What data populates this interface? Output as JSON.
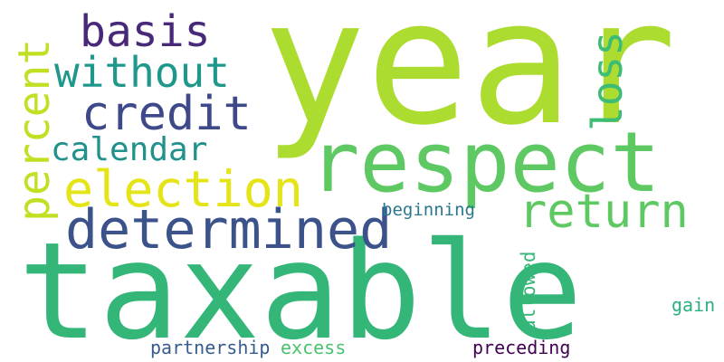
{
  "word_cloud": {
    "words": [
      {
        "id": "year",
        "text": "year",
        "color": "#addc30"
      },
      {
        "id": "taxable",
        "text": "taxable",
        "color": "#34b679"
      },
      {
        "id": "respect",
        "text": "respect",
        "color": "#5ec962"
      },
      {
        "id": "determined",
        "text": "determined",
        "color": "#3b528b"
      },
      {
        "id": "election",
        "text": "election",
        "color": "#e5e419"
      },
      {
        "id": "credit",
        "text": "credit",
        "color": "#3e4989"
      },
      {
        "id": "return",
        "text": "return",
        "color": "#5ec962"
      },
      {
        "id": "basis",
        "text": "basis",
        "color": "#482878"
      },
      {
        "id": "without",
        "text": "without",
        "color": "#1f988b"
      },
      {
        "id": "calendar",
        "text": "calendar",
        "color": "#21918c"
      },
      {
        "id": "percent",
        "text": "percent",
        "color": "#c2df23"
      },
      {
        "id": "loss",
        "text": "loss",
        "color": "#3dbc74"
      },
      {
        "id": "beginning",
        "text": "beginning",
        "color": "#2a788e"
      },
      {
        "id": "allowed",
        "text": "allowed",
        "color": "#35b779"
      },
      {
        "id": "gain",
        "text": "gain",
        "color": "#2ab07f"
      },
      {
        "id": "partnership",
        "text": "partnership",
        "color": "#365c8d"
      },
      {
        "id": "excess",
        "text": "excess",
        "color": "#4ac16d"
      },
      {
        "id": "preceding",
        "text": "preceding",
        "color": "#440154"
      }
    ]
  }
}
